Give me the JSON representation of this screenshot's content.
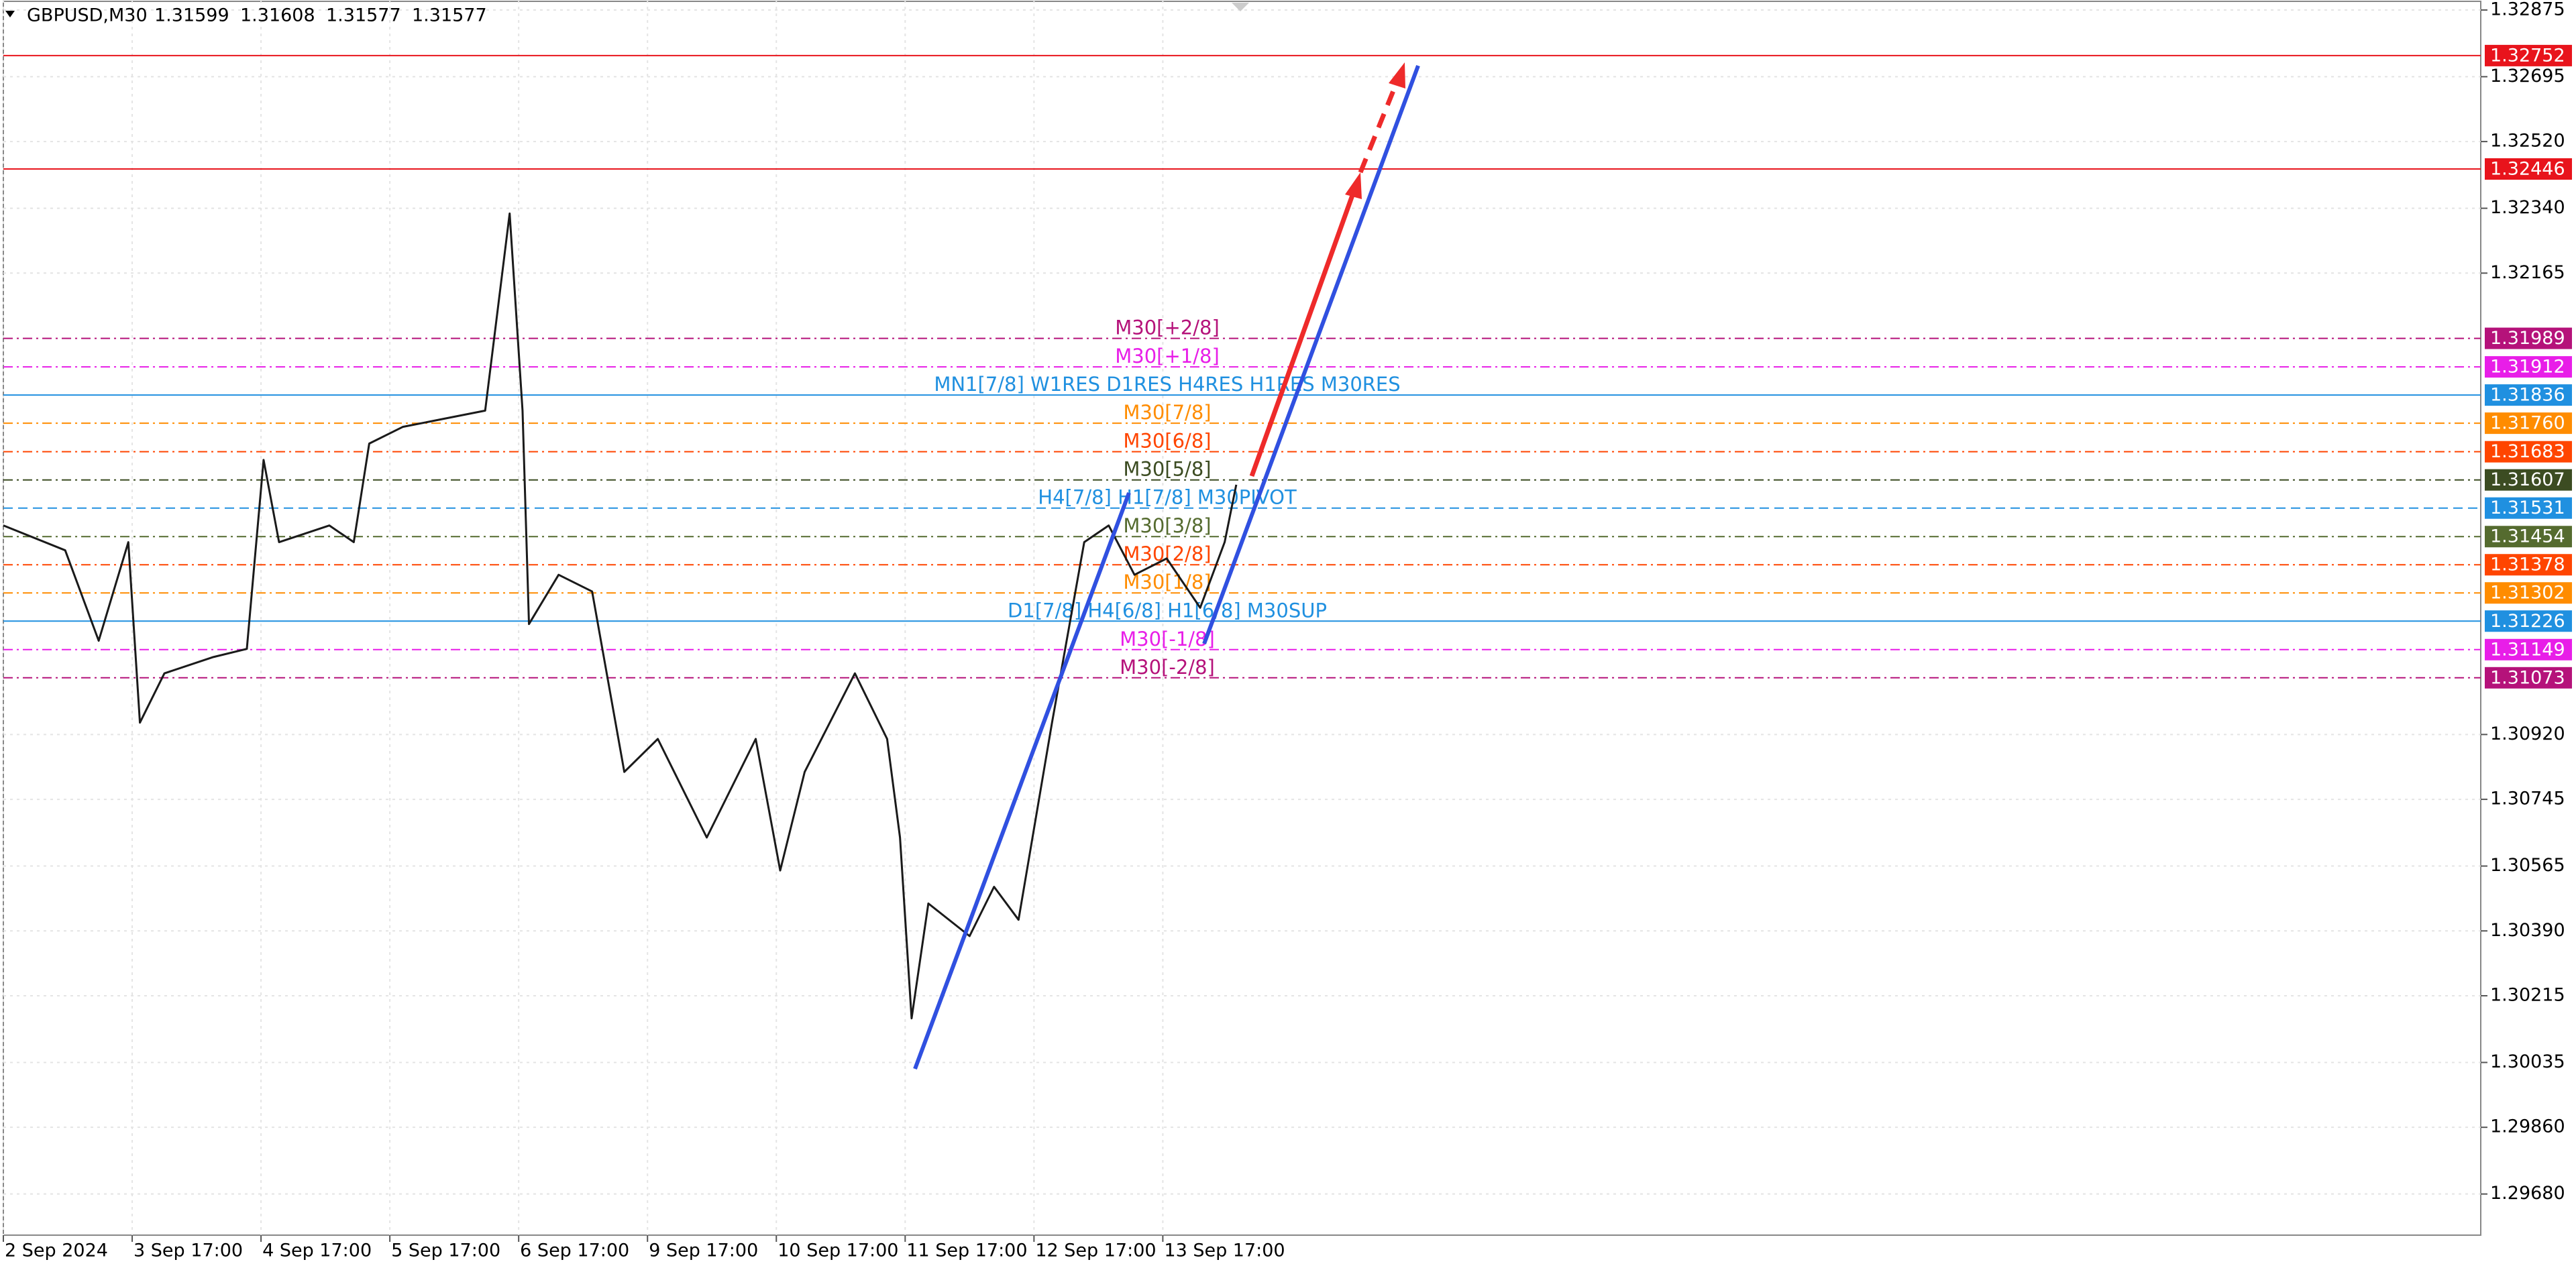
{
  "chart_data": {
    "type": "line",
    "header": {
      "symbol": "GBPUSD,M30",
      "ohlc": [
        1.31599,
        1.31608,
        1.31577,
        1.31577
      ]
    },
    "categories": [
      "2 Sep 2024",
      "3 Sep 17:00",
      "4 Sep 17:00",
      "5 Sep 17:00",
      "6 Sep 17:00",
      "9 Sep 17:00",
      "10 Sep 17:00",
      "11 Sep 17:00",
      "12 Sep 17:00",
      "13 Sep 17:00"
    ],
    "xlim": [
      0,
      19.23
    ],
    "ylim": [
      1.29569,
      1.32902
    ],
    "yticks": [
      1.32875,
      1.32695,
      {
        "value": 1.3252,
        "label": "1.32520"
      },
      {
        "value": 1.3234,
        "label": "1.32340"
      },
      1.32165,
      {
        "value": 1.3092,
        "label": "1.30920"
      },
      1.30745,
      1.30565,
      {
        "value": 1.3039,
        "label": "1.30390"
      },
      1.30215,
      1.30035,
      {
        "value": 1.2986,
        "label": "1.29860"
      },
      {
        "value": 1.2968,
        "label": "1.29680"
      }
    ],
    "grid": true,
    "series": [
      {
        "name": "GBPUSD",
        "color": "#1a1a1a",
        "x": [
          0,
          0.48,
          0.74,
          0.97,
          1.06,
          1.25,
          1.63,
          1.89,
          2.02,
          2.14,
          2.53,
          2.72,
          2.84,
          3.1,
          3.42,
          3.74,
          3.93,
          4.03,
          4.08,
          4.31,
          4.57,
          4.82,
          5.08,
          5.46,
          5.84,
          6.03,
          6.22,
          6.61,
          6.86,
          6.96,
          7.05,
          7.18,
          7.5,
          7.69,
          7.88,
          8.14,
          8.39,
          8.58,
          8.78,
          9.03,
          9.29,
          9.48,
          9.57
        ],
        "values": [
          1.31484,
          1.31417,
          1.31173,
          1.31439,
          1.30952,
          1.31085,
          1.31129,
          1.31151,
          1.31661,
          1.31439,
          1.31484,
          1.31439,
          1.31705,
          1.3175,
          1.31772,
          1.31794,
          1.32326,
          1.31794,
          1.31218,
          1.31351,
          1.31306,
          1.30819,
          1.30908,
          1.30642,
          1.30908,
          1.30553,
          1.30819,
          1.31085,
          1.30908,
          1.30642,
          1.30154,
          1.30464,
          1.30376,
          1.30509,
          1.3042,
          1.30952,
          1.31439,
          1.31484,
          1.31351,
          1.31395,
          1.31262,
          1.31439,
          1.31594
        ]
      }
    ],
    "levels": [
      {
        "value": 1.32752,
        "price_label": "1.32752",
        "color": "#e8141c",
        "style": "solid"
      },
      {
        "value": 1.32446,
        "price_label": "1.32446",
        "color": "#e8141c",
        "style": "solid"
      },
      {
        "value": 1.31989,
        "price_label": "1.31989",
        "name": "M30[+2/8]",
        "color": "#b5127a",
        "style": "dashdot"
      },
      {
        "value": 1.31912,
        "price_label": "1.31912",
        "name": "M30[+1/8]",
        "color": "#e81ee8",
        "style": "dashdot"
      },
      {
        "value": 1.31836,
        "price_label": "1.31836",
        "name": "MN1[7/8] W1RES D1RES H4RES H1RES M30RES",
        "color": "#2090e0",
        "style": "solid"
      },
      {
        "value": 1.3176,
        "price_label": "1.31760",
        "name": "M30[7/8]",
        "color": "#ff8c00",
        "style": "dashdot"
      },
      {
        "value": 1.31683,
        "price_label": "1.31683",
        "name": "M30[6/8]",
        "color": "#ff4500",
        "style": "dashdot"
      },
      {
        "value": 1.31607,
        "price_label": "1.31607",
        "name": "M30[5/8]",
        "color": "#3c4c22",
        "style": "dashdot"
      },
      {
        "value": 1.31531,
        "price_label": "1.31531",
        "name": "H4[7/8] H1[7/8] M30PIVOT",
        "color": "#2090e0",
        "style": "dash"
      },
      {
        "value": 1.31454,
        "price_label": "1.31454",
        "name": "M30[3/8]",
        "color": "#556b2f",
        "style": "dashdot"
      },
      {
        "value": 1.31378,
        "price_label": "1.31378",
        "name": "M30[2/8]",
        "color": "#ff4500",
        "style": "dashdot"
      },
      {
        "value": 1.31302,
        "price_label": "1.31302",
        "name": "M30[1/8]",
        "color": "#ff8c00",
        "style": "dashdot"
      },
      {
        "value": 1.31226,
        "price_label": "1.31226",
        "name": "D1[7/8] H4[6/8] H1[6/8] M30SUP",
        "color": "#2090e0",
        "style": "solid"
      },
      {
        "value": 1.31149,
        "price_label": "1.31149",
        "name": "M30[-1/8]",
        "color": "#e81ee8",
        "style": "dashdot"
      },
      {
        "value": 1.31073,
        "price_label": "1.31073",
        "name": "M30[-2/8]",
        "color": "#b5127a",
        "style": "dashdot"
      }
    ]
  }
}
